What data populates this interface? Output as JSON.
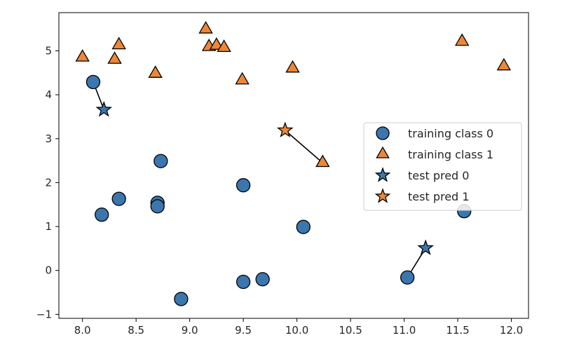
{
  "chart_data": {
    "type": "scatter",
    "title": "",
    "xlabel": "",
    "ylabel": "",
    "xlim": [
      7.78,
      12.16
    ],
    "ylim": [
      -1.09,
      5.87
    ],
    "xticks": [
      8.0,
      8.5,
      9.0,
      9.5,
      10.0,
      10.5,
      11.0,
      11.5,
      12.0
    ],
    "xtick_labels": [
      "8.0",
      "8.5",
      "9.0",
      "9.5",
      "10.0",
      "10.5",
      "11.0",
      "11.5",
      "12.0"
    ],
    "yticks": [
      -1,
      0,
      1,
      2,
      3,
      4,
      5
    ],
    "ytick_labels": [
      "−1",
      "0",
      "1",
      "2",
      "3",
      "4",
      "5"
    ],
    "grid": false,
    "legend_position": "center-right",
    "colors": {
      "class0": "#3b76af",
      "class1": "#ee8637",
      "edge": "#000000"
    },
    "series": [
      {
        "name": "training class 0",
        "marker": "circle",
        "color": "#3b76af",
        "points": [
          [
            8.1,
            4.29
          ],
          [
            8.18,
            1.27
          ],
          [
            8.34,
            1.63
          ],
          [
            8.7,
            1.54
          ],
          [
            8.7,
            1.46
          ],
          [
            8.73,
            2.49
          ],
          [
            8.92,
            -0.65
          ],
          [
            9.5,
            1.94
          ],
          [
            9.5,
            -0.26
          ],
          [
            9.68,
            -0.2
          ],
          [
            10.06,
            0.99
          ],
          [
            11.03,
            -0.16
          ],
          [
            11.56,
            1.35
          ]
        ]
      },
      {
        "name": "training class 1",
        "marker": "triangle",
        "color": "#ee8637",
        "points": [
          [
            8.0,
            4.85
          ],
          [
            8.3,
            4.8
          ],
          [
            8.34,
            5.13
          ],
          [
            8.68,
            4.48
          ],
          [
            9.15,
            5.49
          ],
          [
            9.18,
            5.09
          ],
          [
            9.25,
            5.12
          ],
          [
            9.32,
            5.07
          ],
          [
            9.49,
            4.33
          ],
          [
            9.96,
            4.6
          ],
          [
            10.24,
            2.45
          ],
          [
            11.54,
            5.21
          ],
          [
            11.93,
            4.65
          ]
        ]
      },
      {
        "name": "test pred 0",
        "marker": "star",
        "color": "#3b76af",
        "points": [
          [
            8.2,
            3.66
          ],
          [
            11.2,
            0.51
          ]
        ]
      },
      {
        "name": "test pred 1",
        "marker": "star",
        "color": "#ee8637",
        "points": [
          [
            9.89,
            3.19
          ]
        ]
      }
    ],
    "connections": [
      {
        "from": [
          8.2,
          3.66
        ],
        "to": [
          8.1,
          4.29
        ]
      },
      {
        "from": [
          9.89,
          3.19
        ],
        "to": [
          10.24,
          2.45
        ]
      },
      {
        "from": [
          11.2,
          0.51
        ],
        "to": [
          11.03,
          -0.16
        ]
      }
    ],
    "legend": [
      {
        "label": "training class 0",
        "marker": "circle",
        "color": "#3b76af"
      },
      {
        "label": "training class 1",
        "marker": "triangle",
        "color": "#ee8637"
      },
      {
        "label": "test pred 0",
        "marker": "star",
        "color": "#3b76af"
      },
      {
        "label": "test pred 1",
        "marker": "star",
        "color": "#ee8637"
      }
    ]
  }
}
